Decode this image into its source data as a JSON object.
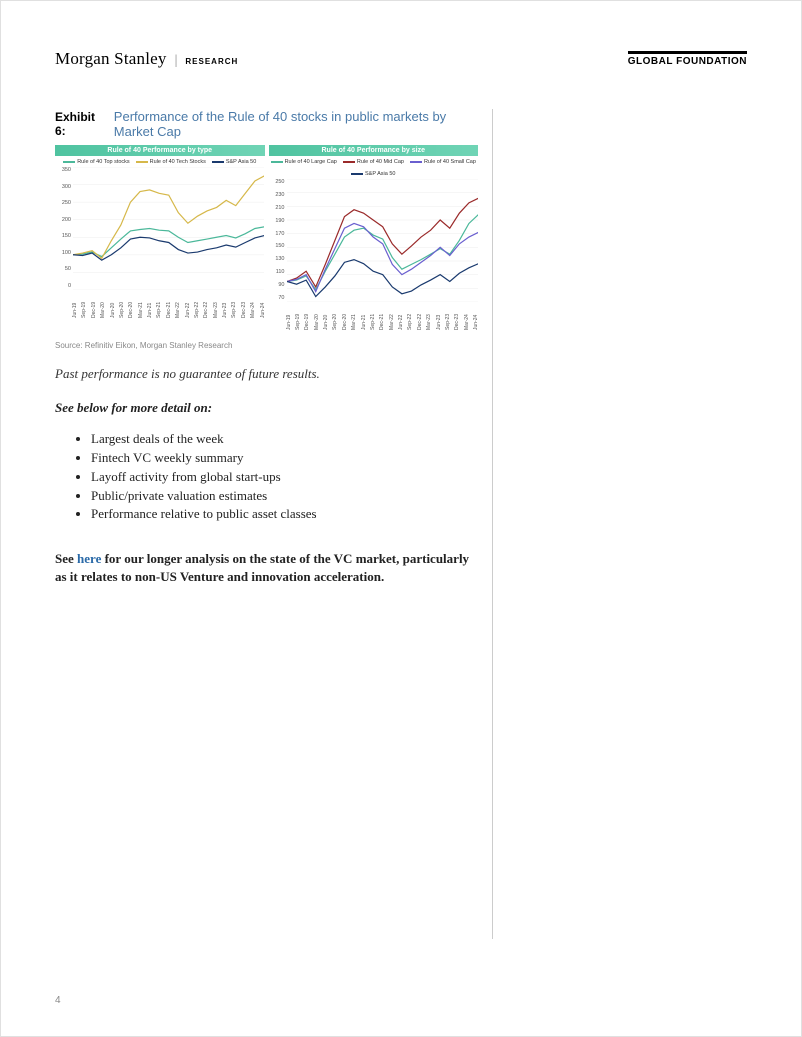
{
  "header": {
    "brand": "Morgan Stanley",
    "divider": "|",
    "research": "RESEARCH",
    "global": "GLOBAL FOUNDATION"
  },
  "exhibit": {
    "label": "Exhibit 6:",
    "title": "Performance of the Rule of 40 stocks in public markets by Market Cap"
  },
  "chart1": {
    "title": "Rule of 40 Performance by type",
    "legend": [
      {
        "label": "Rule of 40 Top stocks",
        "color": "#4bb89a"
      },
      {
        "label": "Rule of 40 Tech Stocks",
        "color": "#d6b84a"
      },
      {
        "label": "S&P Asia 50",
        "color": "#1a3a6e"
      }
    ],
    "yticks": [
      "350",
      "300",
      "250",
      "200",
      "150",
      "100",
      "50",
      "0"
    ],
    "ylim": [
      0,
      350
    ],
    "xticks": [
      "Jun-19",
      "Sep-19",
      "Dec-19",
      "Mar-20",
      "Jun-20",
      "Sep-20",
      "Dec-20",
      "Mar-21",
      "Jun-21",
      "Sep-21",
      "Dec-21",
      "Mar-22",
      "Jun-22",
      "Sep-22",
      "Dec-22",
      "Mar-23",
      "Jun-23",
      "Sep-23",
      "Dec-23",
      "Mar-24",
      "Jun-24"
    ],
    "series": [
      {
        "color": "#4bb89a",
        "width": 1.2,
        "values": [
          100,
          102,
          108,
          95,
          120,
          145,
          168,
          172,
          175,
          170,
          168,
          150,
          135,
          140,
          145,
          150,
          155,
          148,
          160,
          175,
          180
        ]
      },
      {
        "color": "#d6b84a",
        "width": 1.2,
        "values": [
          100,
          105,
          112,
          90,
          140,
          185,
          250,
          280,
          285,
          275,
          270,
          220,
          190,
          210,
          225,
          235,
          255,
          240,
          275,
          310,
          325
        ]
      },
      {
        "color": "#1a3a6e",
        "width": 1.2,
        "values": [
          100,
          98,
          105,
          85,
          100,
          120,
          145,
          150,
          148,
          140,
          135,
          115,
          105,
          108,
          115,
          120,
          128,
          122,
          135,
          148,
          155
        ]
      }
    ]
  },
  "chart2": {
    "title": "Rule of 40 Performance by size",
    "legend": [
      {
        "label": "Rule of 40 Large Cap",
        "color": "#4bb89a"
      },
      {
        "label": "Rule of 40 Mid Cap",
        "color": "#9a2a2a"
      },
      {
        "label": "Rule of 40 Small Cap",
        "color": "#6a5fcf"
      },
      {
        "label": "S&P Asia 50",
        "color": "#1a3a6e"
      }
    ],
    "yticks": [
      "250",
      "230",
      "210",
      "190",
      "170",
      "150",
      "130",
      "110",
      "90",
      "70"
    ],
    "ylim": [
      70,
      250
    ],
    "xticks": [
      "Jun-19",
      "Sep-19",
      "Dec-19",
      "Mar-20",
      "Jun-20",
      "Sep-20",
      "Dec-20",
      "Mar-21",
      "Jun-21",
      "Sep-21",
      "Dec-21",
      "Mar-22",
      "Jun-22",
      "Sep-22",
      "Dec-22",
      "Mar-23",
      "Jun-23",
      "Sep-23",
      "Dec-23",
      "Mar-24",
      "Jun-24"
    ],
    "series": [
      {
        "color": "#4bb89a",
        "width": 1.2,
        "values": [
          100,
          102,
          108,
          88,
          115,
          140,
          165,
          175,
          178,
          168,
          162,
          135,
          118,
          125,
          132,
          140,
          148,
          140,
          160,
          185,
          198
        ]
      },
      {
        "color": "#9a2a2a",
        "width": 1.2,
        "values": [
          100,
          105,
          115,
          92,
          125,
          160,
          195,
          205,
          200,
          190,
          180,
          155,
          140,
          152,
          165,
          175,
          190,
          178,
          200,
          215,
          222
        ]
      },
      {
        "color": "#6a5fcf",
        "width": 1.2,
        "values": [
          100,
          103,
          110,
          85,
          118,
          148,
          178,
          185,
          180,
          165,
          155,
          125,
          110,
          118,
          128,
          138,
          150,
          138,
          155,
          165,
          172
        ]
      },
      {
        "color": "#1a3a6e",
        "width": 1.2,
        "values": [
          100,
          96,
          102,
          78,
          92,
          108,
          128,
          132,
          126,
          115,
          110,
          92,
          82,
          86,
          95,
          102,
          110,
          100,
          112,
          120,
          126
        ]
      }
    ]
  },
  "source": "Source: Refinitiv Eikon, Morgan Stanley Research",
  "disclaimer": "Past performance is no guarantee of future results.",
  "see_below": "See below for more detail on:",
  "bullets": [
    "Largest deals of the week",
    "Fintech VC weekly summary",
    "Layoff activity from global start-ups",
    "Public/private valuation estimates",
    "Performance relative to public asset classes"
  ],
  "closing": {
    "pre": "See ",
    "link": "here",
    "post": " for our longer analysis on the state of the VC market, particularly as it relates to non-US Venture and innovation acceleration."
  },
  "page_number": "4"
}
